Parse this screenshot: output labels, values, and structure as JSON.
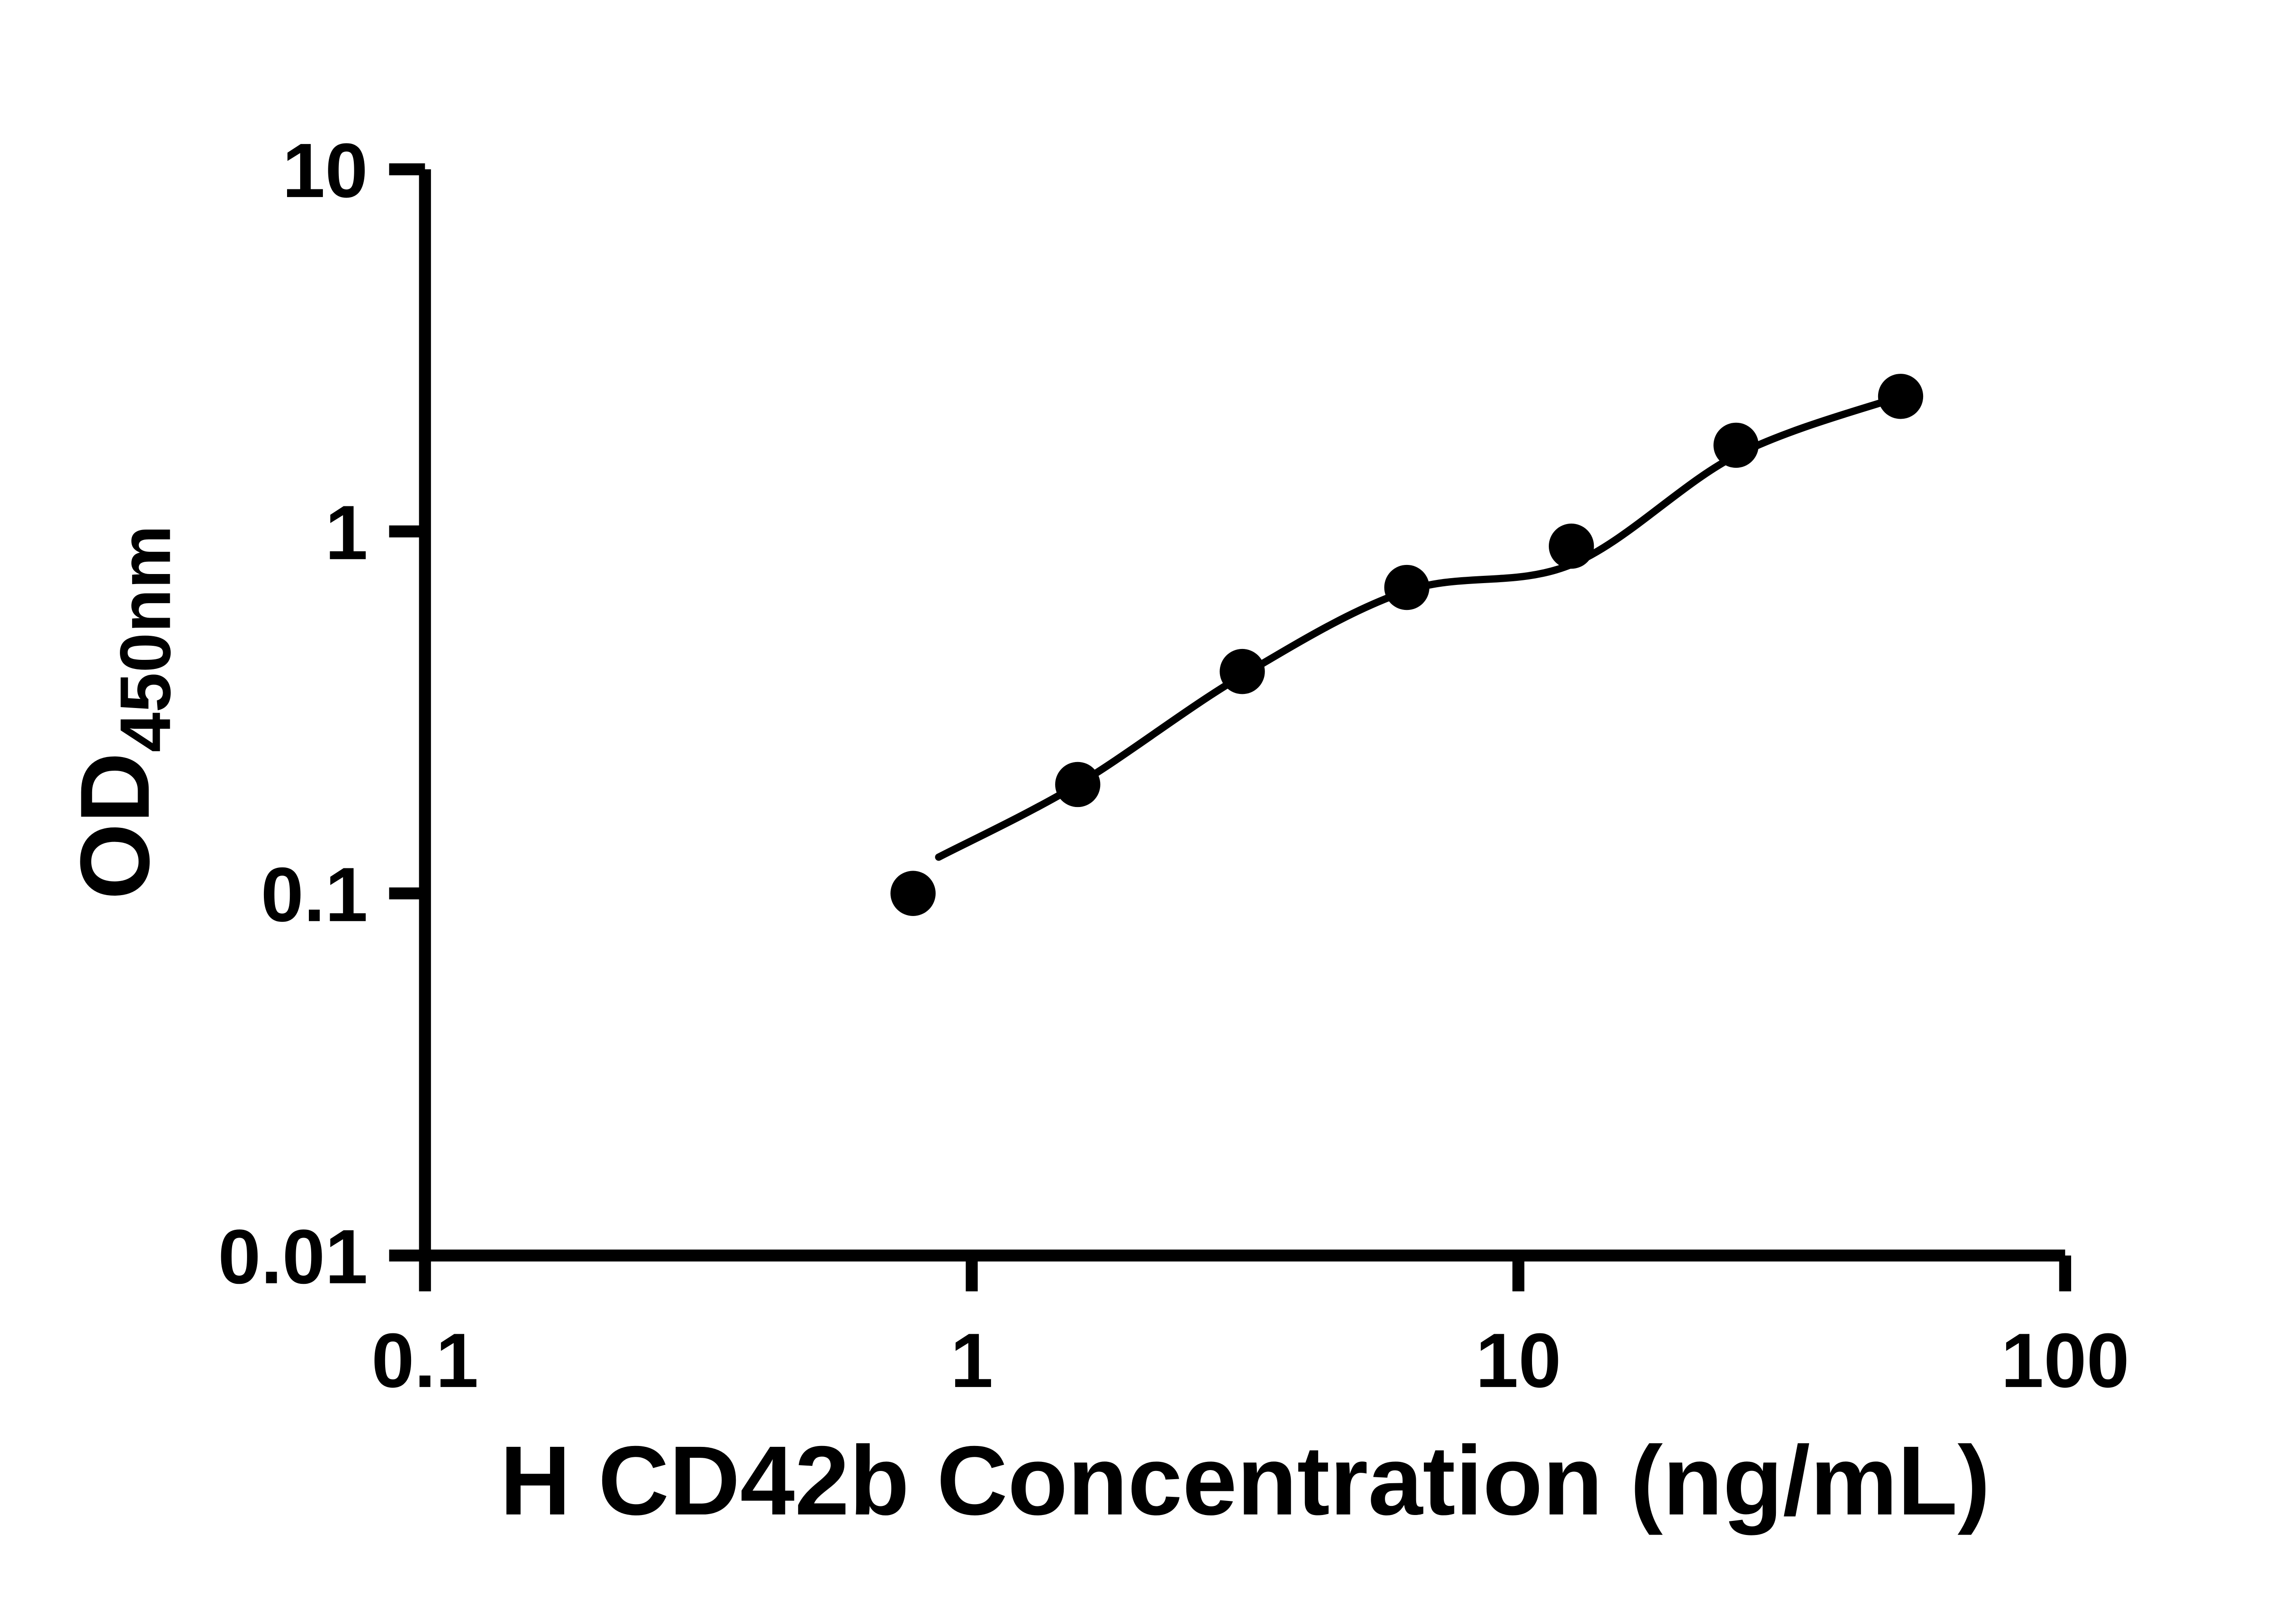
{
  "page": {
    "background": "#ffffff"
  },
  "chart_data": {
    "type": "scatter",
    "title": "",
    "xlabel": "H CD42b Concentration (ng/mL)",
    "ylabel_main": "OD",
    "ylabel_sub": "450nm",
    "x_scale": "log",
    "y_scale": "log",
    "xlim": [
      0.1,
      100
    ],
    "ylim": [
      0.01,
      10
    ],
    "grid": false,
    "legend": false,
    "x_ticks": [
      {
        "value": 0.1,
        "label": "0.1"
      },
      {
        "value": 1,
        "label": "1"
      },
      {
        "value": 10,
        "label": "10"
      },
      {
        "value": 100,
        "label": "100"
      }
    ],
    "y_ticks": [
      {
        "value": 0.01,
        "label": "0.01"
      },
      {
        "value": 0.1,
        "label": "0.1"
      },
      {
        "value": 1,
        "label": "1"
      },
      {
        "value": 10,
        "label": "10"
      }
    ],
    "series": [
      {
        "name": "standard-curve-points",
        "marker": "circle",
        "color": "#000000",
        "points": [
          {
            "x": 0.781,
            "y": 0.1
          },
          {
            "x": 1.563,
            "y": 0.2
          },
          {
            "x": 3.125,
            "y": 0.41
          },
          {
            "x": 6.25,
            "y": 0.7
          },
          {
            "x": 12.5,
            "y": 0.91
          },
          {
            "x": 25,
            "y": 1.73
          },
          {
            "x": 50,
            "y": 2.36
          }
        ]
      }
    ],
    "fit_curve": [
      {
        "x": 0.87,
        "y": 0.126
      },
      {
        "x": 1.563,
        "y": 0.2
      },
      {
        "x": 3.125,
        "y": 0.4
      },
      {
        "x": 6.25,
        "y": 0.685
      },
      {
        "x": 12.5,
        "y": 0.81
      },
      {
        "x": 25,
        "y": 1.62
      },
      {
        "x": 50,
        "y": 2.36
      }
    ],
    "colors": {
      "axis": "#000000",
      "marker": "#000000",
      "line": "#000000",
      "text": "#000000",
      "background": "#ffffff"
    }
  }
}
